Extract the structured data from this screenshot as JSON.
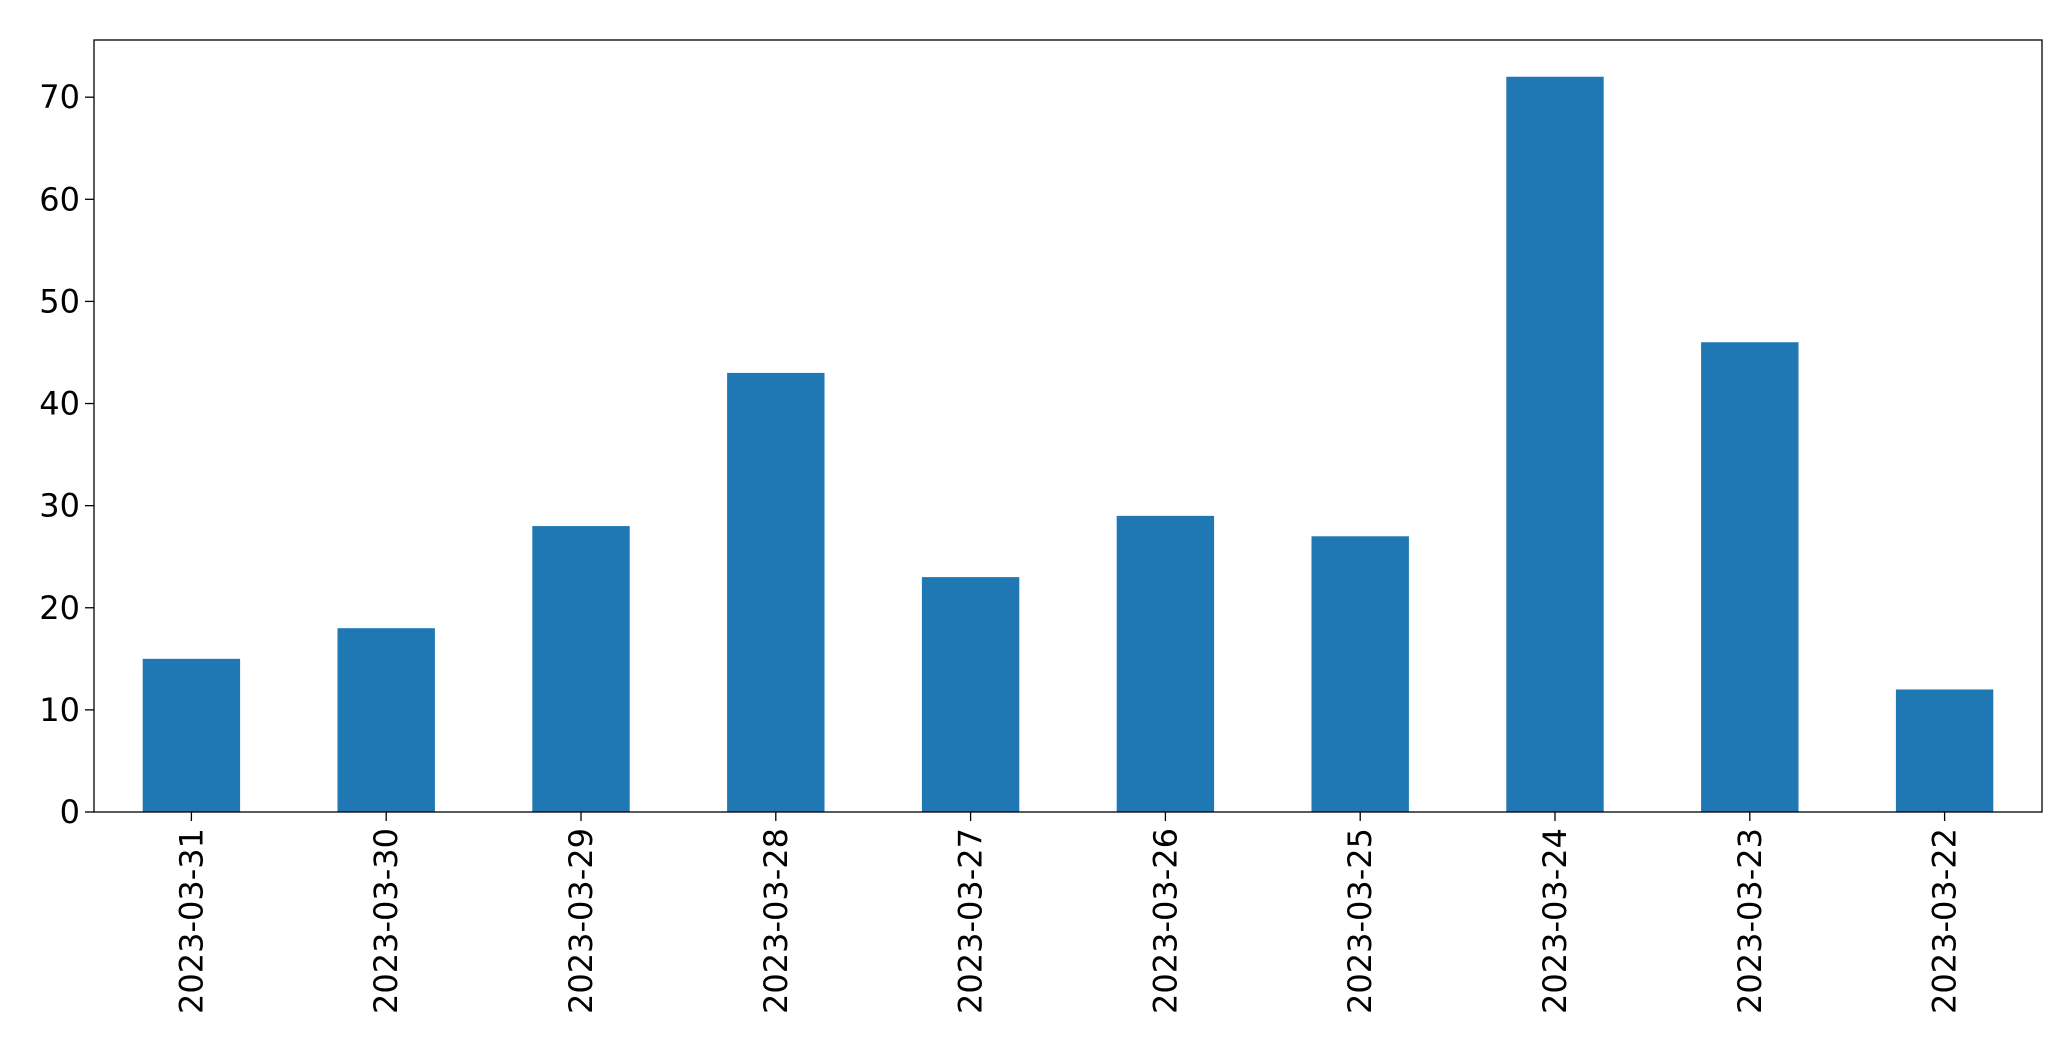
{
  "chart_data": {
    "type": "bar",
    "categories": [
      "2023-03-31",
      "2023-03-30",
      "2023-03-29",
      "2023-03-28",
      "2023-03-27",
      "2023-03-26",
      "2023-03-25",
      "2023-03-24",
      "2023-03-23",
      "2023-03-22"
    ],
    "values": [
      15,
      18,
      28,
      43,
      23,
      29,
      27,
      72,
      46,
      12
    ],
    "color": "#1f77b4",
    "ylim": [
      0,
      75.6
    ],
    "yticks": [
      0,
      10,
      20,
      30,
      40,
      50,
      60,
      70
    ],
    "grid": false
  }
}
